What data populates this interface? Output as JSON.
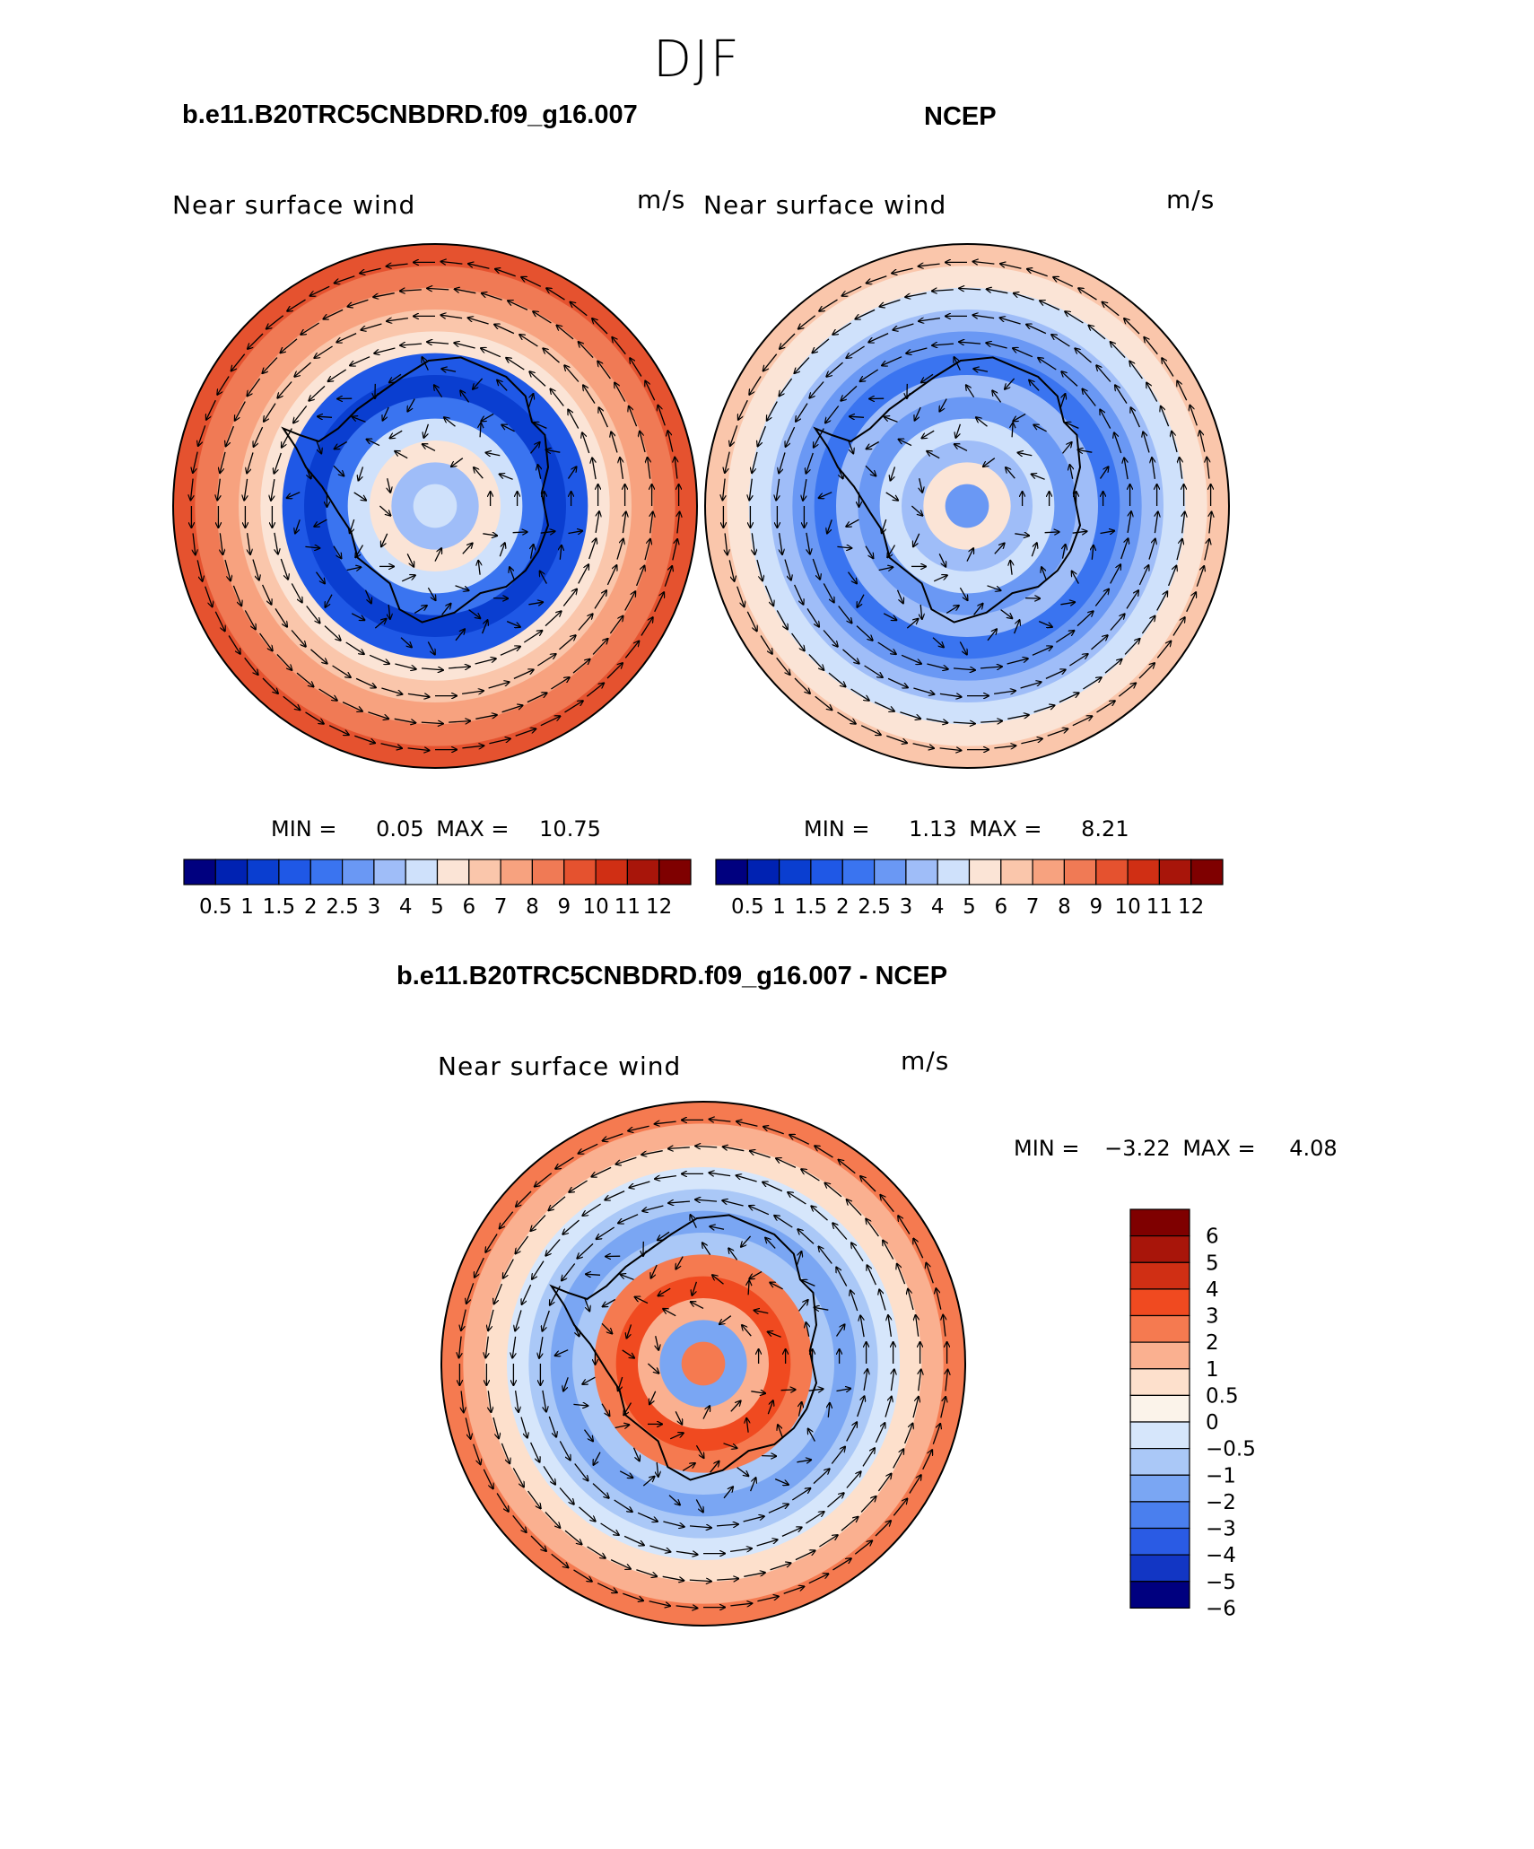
{
  "page": {
    "title": "DJF"
  },
  "chart_data": [
    {
      "type": "heatmap",
      "subtype": "polar-stereographic vector plot",
      "title": "b.e11.B20TRC5CNBDRD.f09_g16.007",
      "variable": "Near surface wind",
      "units": "m/s",
      "min_label": "MIN =",
      "min": "0.05",
      "max_label": "MAX =",
      "max": "10.75",
      "colorbar_levels": [
        "0.5",
        "1",
        "1.5",
        "2",
        "2.5",
        "3",
        "4",
        "5",
        "6",
        "7",
        "8",
        "9",
        "10",
        "11",
        "12"
      ],
      "colorbar_colors": [
        "#00007f",
        "#0022b2",
        "#0a3ed0",
        "#1f58e6",
        "#3a74f0",
        "#6a98f4",
        "#9fbdf8",
        "#cfe1fb",
        "#fbe4d6",
        "#fac6ab",
        "#f7a27f",
        "#f07a55",
        "#e5522f",
        "#d02f14",
        "#a8150a",
        "#7f0000"
      ]
    },
    {
      "type": "heatmap",
      "subtype": "polar-stereographic vector plot",
      "title": "NCEP",
      "variable": "Near surface wind",
      "units": "m/s",
      "min_label": "MIN =",
      "min": "1.13",
      "max_label": "MAX =",
      "max": "8.21",
      "colorbar_levels": [
        "0.5",
        "1",
        "1.5",
        "2",
        "2.5",
        "3",
        "4",
        "5",
        "6",
        "7",
        "8",
        "9",
        "10",
        "11",
        "12"
      ],
      "colorbar_colors": [
        "#00007f",
        "#0022b2",
        "#0a3ed0",
        "#1f58e6",
        "#3a74f0",
        "#6a98f4",
        "#9fbdf8",
        "#cfe1fb",
        "#fbe4d6",
        "#fac6ab",
        "#f7a27f",
        "#f07a55",
        "#e5522f",
        "#d02f14",
        "#a8150a",
        "#7f0000"
      ]
    },
    {
      "type": "heatmap",
      "subtype": "polar-stereographic difference vector plot",
      "title": "b.e11.B20TRC5CNBDRD.f09_g16.007 - NCEP",
      "variable": "Near surface wind",
      "units": "m/s",
      "min_label": "MIN =",
      "min": "−3.22",
      "max_label": "MAX =",
      "max": "4.08",
      "colorbar_levels": [
        "6",
        "5",
        "4",
        "3",
        "2",
        "1",
        "0.5",
        "0",
        "−0.5",
        "−1",
        "−2",
        "−3",
        "−4",
        "−5",
        "−6"
      ],
      "colorbar_colors": [
        "#7f0000",
        "#a8150a",
        "#d02f14",
        "#f04a20",
        "#f57a50",
        "#fab090",
        "#fde0cc",
        "#fbf3ea",
        "#d6e6fb",
        "#aac8f7",
        "#7aa6f3",
        "#4a7fee",
        "#2a5be4",
        "#1236c4",
        "#00007f"
      ]
    }
  ]
}
